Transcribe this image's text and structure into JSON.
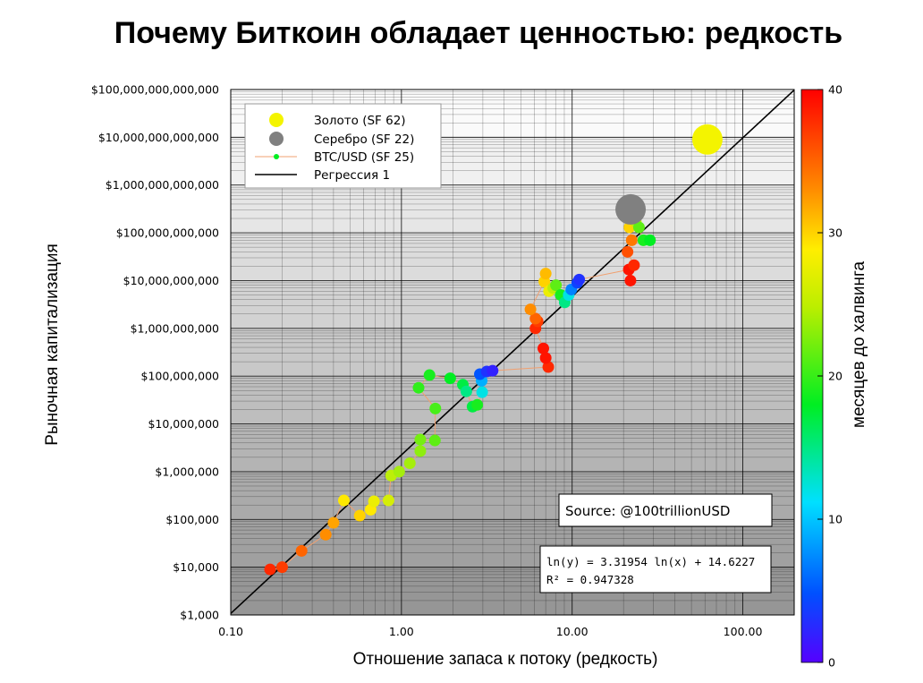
{
  "title": "Почему Биткоин обладает ценностью: редкость",
  "colors": {
    "gold": "#f4f400",
    "silver": "#808080",
    "regression": "#000000",
    "btc_line": "#f0a070",
    "colormap": [
      "#5500ff",
      "#0050ff",
      "#00e0ff",
      "#00ee22",
      "#ffee00",
      "#ff8800",
      "#ff0000"
    ]
  },
  "chart_data": {
    "type": "scatter",
    "xscale": "log",
    "yscale": "log",
    "xlim": [
      0.1,
      200
    ],
    "ylim": [
      1000,
      100000000000000
    ],
    "xlabel": "Отношение запаса к потоку (редкость)",
    "ylabel": "Рыночная капитализация",
    "x_ticks": [
      "0.10",
      "1.00",
      "10.00",
      "100.00"
    ],
    "y_ticks": [
      "$1,000",
      "$10,000",
      "$100,000",
      "$1,000,000",
      "$10,000,000",
      "$100,000,000",
      "$1,000,000,000",
      "$10,000,000,000",
      "$100,000,000,000",
      "$1,000,000,000,000",
      "$10,000,000,000,000",
      "$100,000,000,000,000"
    ],
    "colorbar": {
      "label": "месяцев до халвинга",
      "ticks": [
        "0",
        "10",
        "20",
        "30",
        "40"
      ],
      "range": [
        0,
        40
      ]
    },
    "legend": {
      "position": "top-left",
      "entries": [
        "Золото (SF 62)",
        "Серебро (SF 22)",
        "BTC/USD (SF 25)",
        "Регрессия 1"
      ]
    },
    "annotations": {
      "source": "Source: @100trillionUSD",
      "equation": "ln(y) = 3.31954 ln(x) + 14.6227",
      "r2": "R² = 0.947328"
    },
    "regression": {
      "slope": 3.31954,
      "intercept": 14.6227
    },
    "series": [
      {
        "name": "Золото (SF 62)",
        "points": [
          {
            "x": 62,
            "y": 9000000000000
          }
        ]
      },
      {
        "name": "Серебро (SF 22)",
        "points": [
          {
            "x": 22,
            "y": 310000000000
          }
        ]
      },
      {
        "name": "BTC/USD (SF 25)",
        "points": [
          {
            "x": 0.17,
            "y": 9000,
            "m": 38
          },
          {
            "x": 0.2,
            "y": 10000,
            "m": 37
          },
          {
            "x": 0.26,
            "y": 22000,
            "m": 35
          },
          {
            "x": 0.36,
            "y": 48000,
            "m": 33
          },
          {
            "x": 0.4,
            "y": 85000,
            "m": 32
          },
          {
            "x": 0.46,
            "y": 250000,
            "m": 29
          },
          {
            "x": 0.57,
            "y": 120000,
            "m": 30
          },
          {
            "x": 0.66,
            "y": 160000,
            "m": 29
          },
          {
            "x": 0.69,
            "y": 240000,
            "m": 28
          },
          {
            "x": 0.84,
            "y": 250000,
            "m": 27
          },
          {
            "x": 0.87,
            "y": 830000,
            "m": 26
          },
          {
            "x": 0.97,
            "y": 1000000,
            "m": 25
          },
          {
            "x": 1.12,
            "y": 1500000,
            "m": 25
          },
          {
            "x": 1.29,
            "y": 2700000,
            "m": 24
          },
          {
            "x": 1.29,
            "y": 4700000,
            "m": 23
          },
          {
            "x": 1.57,
            "y": 4500000,
            "m": 22
          },
          {
            "x": 1.58,
            "y": 21000000,
            "m": 21
          },
          {
            "x": 1.26,
            "y": 57000000,
            "m": 20
          },
          {
            "x": 1.46,
            "y": 105000000,
            "m": 19
          },
          {
            "x": 1.93,
            "y": 90000000,
            "m": 18
          },
          {
            "x": 2.29,
            "y": 66000000,
            "m": 17
          },
          {
            "x": 2.4,
            "y": 48000000,
            "m": 15
          },
          {
            "x": 2.61,
            "y": 23000000,
            "m": 17
          },
          {
            "x": 2.78,
            "y": 25000000,
            "m": 19
          },
          {
            "x": 2.97,
            "y": 46000000,
            "m": 12
          },
          {
            "x": 2.95,
            "y": 80000000,
            "m": 9
          },
          {
            "x": 2.88,
            "y": 110000000,
            "m": 5
          },
          {
            "x": 3.16,
            "y": 125000000,
            "m": 3
          },
          {
            "x": 3.42,
            "y": 130000000,
            "m": 2
          },
          {
            "x": 7.25,
            "y": 155000000,
            "m": 38
          },
          {
            "x": 7.0,
            "y": 240000000,
            "m": 39
          },
          {
            "x": 6.78,
            "y": 380000000,
            "m": 39
          },
          {
            "x": 6.1,
            "y": 1000000000,
            "m": 38
          },
          {
            "x": 6.28,
            "y": 1400000000,
            "m": 37
          },
          {
            "x": 6.1,
            "y": 1600000000,
            "m": 35
          },
          {
            "x": 5.7,
            "y": 2500000000,
            "m": 33
          },
          {
            "x": 6.87,
            "y": 9500000000,
            "m": 30
          },
          {
            "x": 7.0,
            "y": 14000000000,
            "m": 31
          },
          {
            "x": 7.32,
            "y": 6000000000,
            "m": 28
          },
          {
            "x": 7.75,
            "y": 7000000000,
            "m": 26
          },
          {
            "x": 8.04,
            "y": 8000000000,
            "m": 22
          },
          {
            "x": 8.57,
            "y": 5000000000,
            "m": 19
          },
          {
            "x": 9.05,
            "y": 3500000000,
            "m": 15
          },
          {
            "x": 9.55,
            "y": 5000000000,
            "m": 12
          },
          {
            "x": 9.89,
            "y": 6500000000,
            "m": 7
          },
          {
            "x": 10.72,
            "y": 9000000000,
            "m": 4
          },
          {
            "x": 11.0,
            "y": 10500000000,
            "m": 3
          },
          {
            "x": 21.49,
            "y": 17000000000,
            "m": 39
          },
          {
            "x": 21.96,
            "y": 10000000000,
            "m": 39
          },
          {
            "x": 23.05,
            "y": 21000000000,
            "m": 38
          },
          {
            "x": 21.11,
            "y": 40000000000,
            "m": 36
          },
          {
            "x": 22.34,
            "y": 70000000000,
            "m": 34
          },
          {
            "x": 21.67,
            "y": 130000000000,
            "m": 30
          },
          {
            "x": 21.06,
            "y": 230000000000,
            "m": 28
          },
          {
            "x": 23.6,
            "y": 170000000000,
            "m": 26
          },
          {
            "x": 24.64,
            "y": 130000000000,
            "m": 22
          },
          {
            "x": 26.14,
            "y": 70000000000,
            "m": 19
          },
          {
            "x": 28.58,
            "y": 70000000000,
            "m": 18
          }
        ]
      },
      {
        "name": "Регрессия 1",
        "line": true
      }
    ]
  }
}
